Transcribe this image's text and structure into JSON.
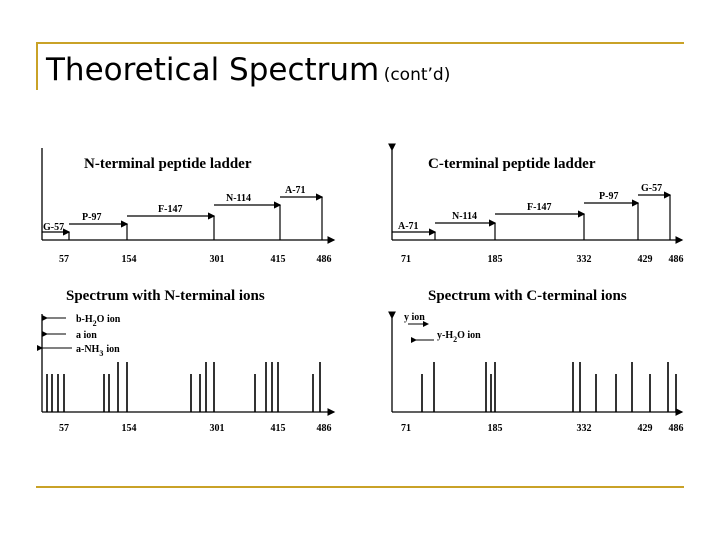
{
  "title": "Theoretical Spectrum",
  "title_suffix": "(cont’d)",
  "panels": {
    "n_ladder": {
      "heading": "N-terminal peptide ladder",
      "ticks": [
        "57",
        "154",
        "301",
        "415",
        "486"
      ],
      "residues": [
        "G-57",
        "P-97",
        "F-147",
        "N-114",
        "A-71"
      ]
    },
    "c_ladder": {
      "heading": "C-terminal peptide ladder",
      "ticks": [
        "71",
        "185",
        "332",
        "429",
        "486"
      ],
      "residues": [
        "A-71",
        "N-114",
        "F-147",
        "P-97",
        "G-57"
      ]
    },
    "n_spectrum": {
      "heading": "Spectrum with N-terminal ions",
      "legend": [
        "b-H",
        "2",
        "O ion",
        "a ion",
        "a-NH",
        "3",
        "ion"
      ],
      "ticks": [
        "57",
        "154",
        "301",
        "415",
        "486"
      ]
    },
    "c_spectrum": {
      "heading": "Spectrum with C-terminal ions",
      "legend": [
        "y ion",
        "y-H",
        "2",
        "O ion"
      ],
      "ticks": [
        "71",
        "185",
        "332",
        "429",
        "486"
      ]
    }
  }
}
